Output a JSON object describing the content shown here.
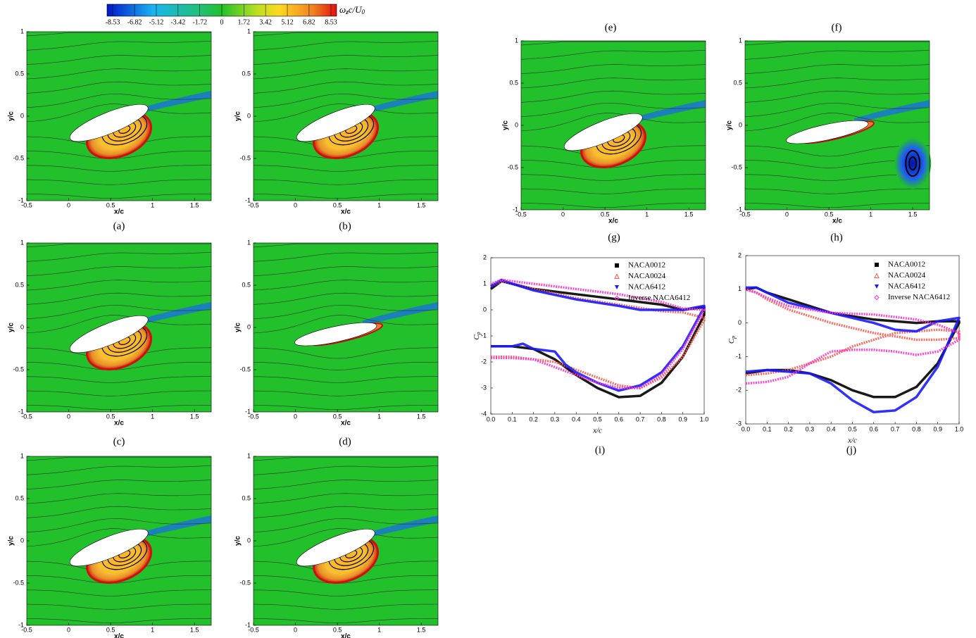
{
  "colorbar": {
    "label": {
      "omega": "ω",
      "z": "z",
      "mid": "c/U",
      "zero": "0"
    },
    "lim": [
      -8.53,
      8.53
    ],
    "ticks": [
      -8.53,
      -6.82,
      -5.12,
      -3.42,
      -1.72,
      0,
      1.72,
      3.42,
      5.12,
      6.82,
      8.53
    ]
  },
  "contour_axes": {
    "xlabel": "x/c",
    "ylabel": "y/c",
    "xlim": [
      -0.5,
      1.7
    ],
    "ylim": [
      -1,
      1
    ],
    "xticks": [
      -0.5,
      0,
      0.5,
      1,
      1.5
    ],
    "yticks": [
      -1,
      -0.5,
      0,
      0.5,
      1
    ]
  },
  "panel_labels": [
    "(a)",
    "(b)",
    "(c)",
    "(d)",
    "(e)",
    "(f)",
    "(g)",
    "(h)"
  ],
  "chart_data": [
    {
      "type": "line",
      "label": "(i)",
      "xlabel": "x/c",
      "ylabel": {
        "main": "C",
        "sub": "p"
      },
      "xlim": [
        0,
        1
      ],
      "ylim": [
        -4,
        2
      ],
      "legend": "upper right",
      "xticks": [
        {
          "value": 0,
          "label": "0.0"
        },
        0.1,
        0.2,
        0.3,
        0.4,
        0.5,
        0.6,
        0.7,
        0.8,
        0.9,
        {
          "value": 1,
          "label": "1.0"
        }
      ],
      "yticks": [
        -4,
        -3,
        -2,
        -1,
        0,
        1,
        2
      ],
      "series": [
        {
          "name": "NACA0012",
          "color": "#000000",
          "marker": "square",
          "x": [
            0,
            0.1,
            0.2,
            0.3,
            0.4,
            0.5,
            0.6,
            0.7,
            0.8,
            0.9,
            1,
            1,
            0.9,
            0.8,
            0.6,
            0.4,
            0.2,
            0.1,
            0.05,
            0
          ],
          "values": [
            -1.4,
            -1.4,
            -1.5,
            -1.9,
            -2.5,
            -3,
            -3.35,
            -3.3,
            -2.8,
            -1.8,
            -0.2,
            0.1,
            0,
            0.2,
            0.4,
            0.6,
            0.8,
            1,
            1.1,
            0.8
          ]
        },
        {
          "name": "NACA0024",
          "color": "#ff5a4a",
          "marker": "triangle",
          "x": [
            0,
            0.1,
            0.2,
            0.3,
            0.4,
            0.5,
            0.6,
            0.7,
            0.8,
            0.9,
            1,
            1,
            0.9,
            0.8,
            0.6,
            0.4,
            0.2,
            0.1,
            0.05,
            0
          ],
          "values": [
            -1.8,
            -1.8,
            -1.9,
            -2,
            -2.3,
            -2.6,
            -2.9,
            -3,
            -2.6,
            -1.8,
            -0.4,
            -0.3,
            -0.1,
            -0.05,
            0.2,
            0.45,
            0.8,
            1,
            1.1,
            0.9
          ]
        },
        {
          "name": "NACA6412",
          "color": "#1a1aff",
          "marker": "triangle-down",
          "x": [
            0,
            0.1,
            0.15,
            0.2,
            0.3,
            0.35,
            0.4,
            0.5,
            0.6,
            0.7,
            0.8,
            0.9,
            1,
            1,
            0.9,
            0.8,
            0.7,
            0.6,
            0.4,
            0.2,
            0.1,
            0.05,
            0
          ],
          "values": [
            -1.4,
            -1.4,
            -1.3,
            -1.5,
            -1.6,
            -2.1,
            -2.4,
            -2.8,
            -3.1,
            -2.9,
            -2.4,
            -1.4,
            0.1,
            0.15,
            0,
            0,
            0,
            0.15,
            0.4,
            0.75,
            1,
            1.15,
            0.9
          ]
        },
        {
          "name": "Inverse NACA6412",
          "color": "#ff33cc",
          "marker": "diamond",
          "x": [
            0,
            0.1,
            0.2,
            0.3,
            0.4,
            0.5,
            0.6,
            0.7,
            0.8,
            0.9,
            1,
            1,
            0.9,
            0.8,
            0.6,
            0.4,
            0.2,
            0.1,
            0.05,
            0
          ],
          "values": [
            -1.85,
            -1.85,
            -1.9,
            -2.2,
            -2.5,
            -2.8,
            -3,
            -3,
            -2.5,
            -1.5,
            0,
            0,
            0.05,
            0.3,
            0.6,
            0.8,
            1,
            1.1,
            1.15,
            1
          ]
        }
      ]
    },
    {
      "type": "line",
      "label": "(j)",
      "xlabel": "x/c",
      "ylabel": {
        "main": "C",
        "sub": "p"
      },
      "xlim": [
        0,
        1
      ],
      "ylim": [
        -3,
        2
      ],
      "legend": "upper right",
      "xticks": [
        {
          "value": 0,
          "label": "0.0"
        },
        0.1,
        0.2,
        0.3,
        0.4,
        0.5,
        0.6,
        0.7,
        0.8,
        0.9,
        {
          "value": 1,
          "label": "1.0"
        }
      ],
      "yticks": [
        -3,
        -2,
        -1,
        0,
        1,
        2
      ],
      "series": [
        {
          "name": "NACA0012",
          "color": "#000000",
          "marker": "square",
          "x": [
            0,
            0.1,
            0.2,
            0.3,
            0.4,
            0.5,
            0.6,
            0.7,
            0.8,
            0.9,
            1,
            1,
            0.9,
            0.8,
            0.6,
            0.4,
            0.2,
            0.1,
            0.05,
            0
          ],
          "values": [
            -1.5,
            -1.4,
            -1.4,
            -1.5,
            -1.7,
            -2,
            -2.2,
            -2.2,
            -1.9,
            -1.2,
            0,
            0.05,
            0.05,
            0,
            0.1,
            0.3,
            0.7,
            0.9,
            1.05,
            1
          ]
        },
        {
          "name": "NACA0024",
          "color": "#ff5a4a",
          "marker": "triangle",
          "x": [
            0,
            0.1,
            0.2,
            0.3,
            0.4,
            0.5,
            0.6,
            0.7,
            0.8,
            0.9,
            1,
            1,
            0.9,
            0.8,
            0.6,
            0.4,
            0.2,
            0.1,
            0.05,
            0
          ],
          "values": [
            -1.55,
            -1.5,
            -1.4,
            -1.2,
            -1,
            -0.7,
            -0.5,
            -0.3,
            -0.25,
            -0.2,
            -0.25,
            -0.45,
            -0.5,
            -0.5,
            -0.3,
            0,
            0.4,
            0.7,
            0.9,
            1
          ]
        },
        {
          "name": "NACA6412",
          "color": "#1a1aff",
          "marker": "triangle-down",
          "x": [
            0,
            0.1,
            0.2,
            0.3,
            0.4,
            0.5,
            0.6,
            0.7,
            0.8,
            0.9,
            1,
            1,
            0.9,
            0.8,
            0.7,
            0.6,
            0.4,
            0.2,
            0.1,
            0.05,
            0
          ],
          "values": [
            -1.45,
            -1.4,
            -1.45,
            -1.5,
            -1.8,
            -2.3,
            -2.65,
            -2.6,
            -2.2,
            -1.3,
            0.15,
            0.15,
            0.05,
            -0.25,
            -0.2,
            0,
            0.3,
            0.6,
            0.9,
            1.05,
            1.05
          ]
        },
        {
          "name": "Inverse NACA6412",
          "color": "#ff33cc",
          "marker": "diamond",
          "x": [
            0,
            0.1,
            0.2,
            0.3,
            0.4,
            0.5,
            0.6,
            0.7,
            0.8,
            0.9,
            1,
            1,
            0.9,
            0.8,
            0.6,
            0.4,
            0.2,
            0.1,
            0.05,
            0
          ],
          "values": [
            -1.8,
            -1.75,
            -1.6,
            -1.2,
            -0.85,
            -0.8,
            -0.8,
            -0.85,
            -0.95,
            -0.85,
            -0.5,
            -0.3,
            -0.05,
            0.1,
            0.25,
            0.3,
            0.5,
            0.75,
            0.9,
            1
          ]
        }
      ]
    }
  ]
}
